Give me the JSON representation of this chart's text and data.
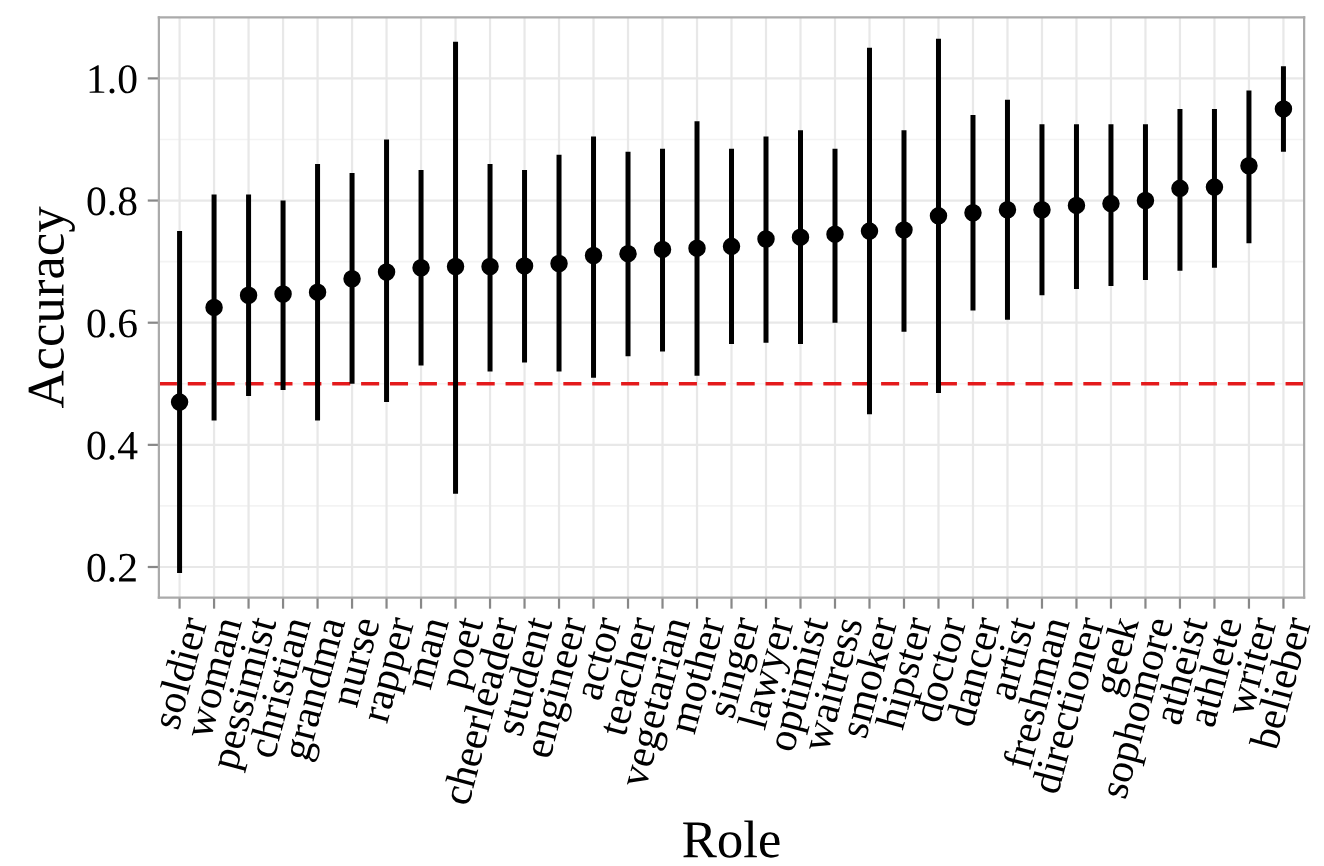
{
  "chart_data": {
    "type": "scatter",
    "xlabel": "Role",
    "ylabel": "Accuracy",
    "categories": [
      "soldier",
      "woman",
      "pessimist",
      "christian",
      "grandma",
      "nurse",
      "rapper",
      "man",
      "poet",
      "cheerleader",
      "student",
      "engineer",
      "actor",
      "teacher",
      "vegetarian",
      "mother",
      "singer",
      "lawyer",
      "optimist",
      "waitress",
      "smoker",
      "hipster",
      "doctor",
      "dancer",
      "artist",
      "freshman",
      "directioner",
      "geek",
      "sophomore",
      "atheist",
      "athlete",
      "writer",
      "belieber"
    ],
    "values": [
      0.47,
      0.625,
      0.645,
      0.647,
      0.65,
      0.672,
      0.683,
      0.69,
      0.692,
      0.692,
      0.693,
      0.697,
      0.71,
      0.713,
      0.72,
      0.722,
      0.725,
      0.737,
      0.74,
      0.745,
      0.75,
      0.752,
      0.775,
      0.78,
      0.785,
      0.785,
      0.792,
      0.795,
      0.8,
      0.82,
      0.822,
      0.857,
      0.95
    ],
    "errors": [
      [
        0.19,
        0.75
      ],
      [
        0.44,
        0.81
      ],
      [
        0.48,
        0.81
      ],
      [
        0.49,
        0.8
      ],
      [
        0.44,
        0.86
      ],
      [
        0.5,
        0.845
      ],
      [
        0.47,
        0.9
      ],
      [
        0.53,
        0.85
      ],
      [
        0.32,
        1.06
      ],
      [
        0.52,
        0.86
      ],
      [
        0.535,
        0.85
      ],
      [
        0.52,
        0.875
      ],
      [
        0.51,
        0.905
      ],
      [
        0.545,
        0.88
      ],
      [
        0.553,
        0.885
      ],
      [
        0.513,
        0.93
      ],
      [
        0.565,
        0.885
      ],
      [
        0.567,
        0.905
      ],
      [
        0.565,
        0.915
      ],
      [
        0.6,
        0.885
      ],
      [
        0.45,
        1.05
      ],
      [
        0.585,
        0.915
      ],
      [
        0.485,
        1.065
      ],
      [
        0.62,
        0.94
      ],
      [
        0.605,
        0.965
      ],
      [
        0.645,
        0.925
      ],
      [
        0.655,
        0.925
      ],
      [
        0.66,
        0.925
      ],
      [
        0.67,
        0.925
      ],
      [
        0.685,
        0.95
      ],
      [
        0.69,
        0.95
      ],
      [
        0.73,
        0.98
      ],
      [
        0.88,
        1.02
      ]
    ],
    "color": "#000000",
    "marker": "circle",
    "ylim": [
      0.15,
      1.1
    ],
    "yticks": [
      0.2,
      0.4,
      0.6,
      0.8,
      {
        "value": 1,
        "label": "1.0"
      }
    ],
    "ref_lines": [
      {
        "axis": "y",
        "value": 0.5,
        "color": "#e41a1c",
        "line_style": "dashed"
      }
    ],
    "grid": true,
    "legend": false
  }
}
